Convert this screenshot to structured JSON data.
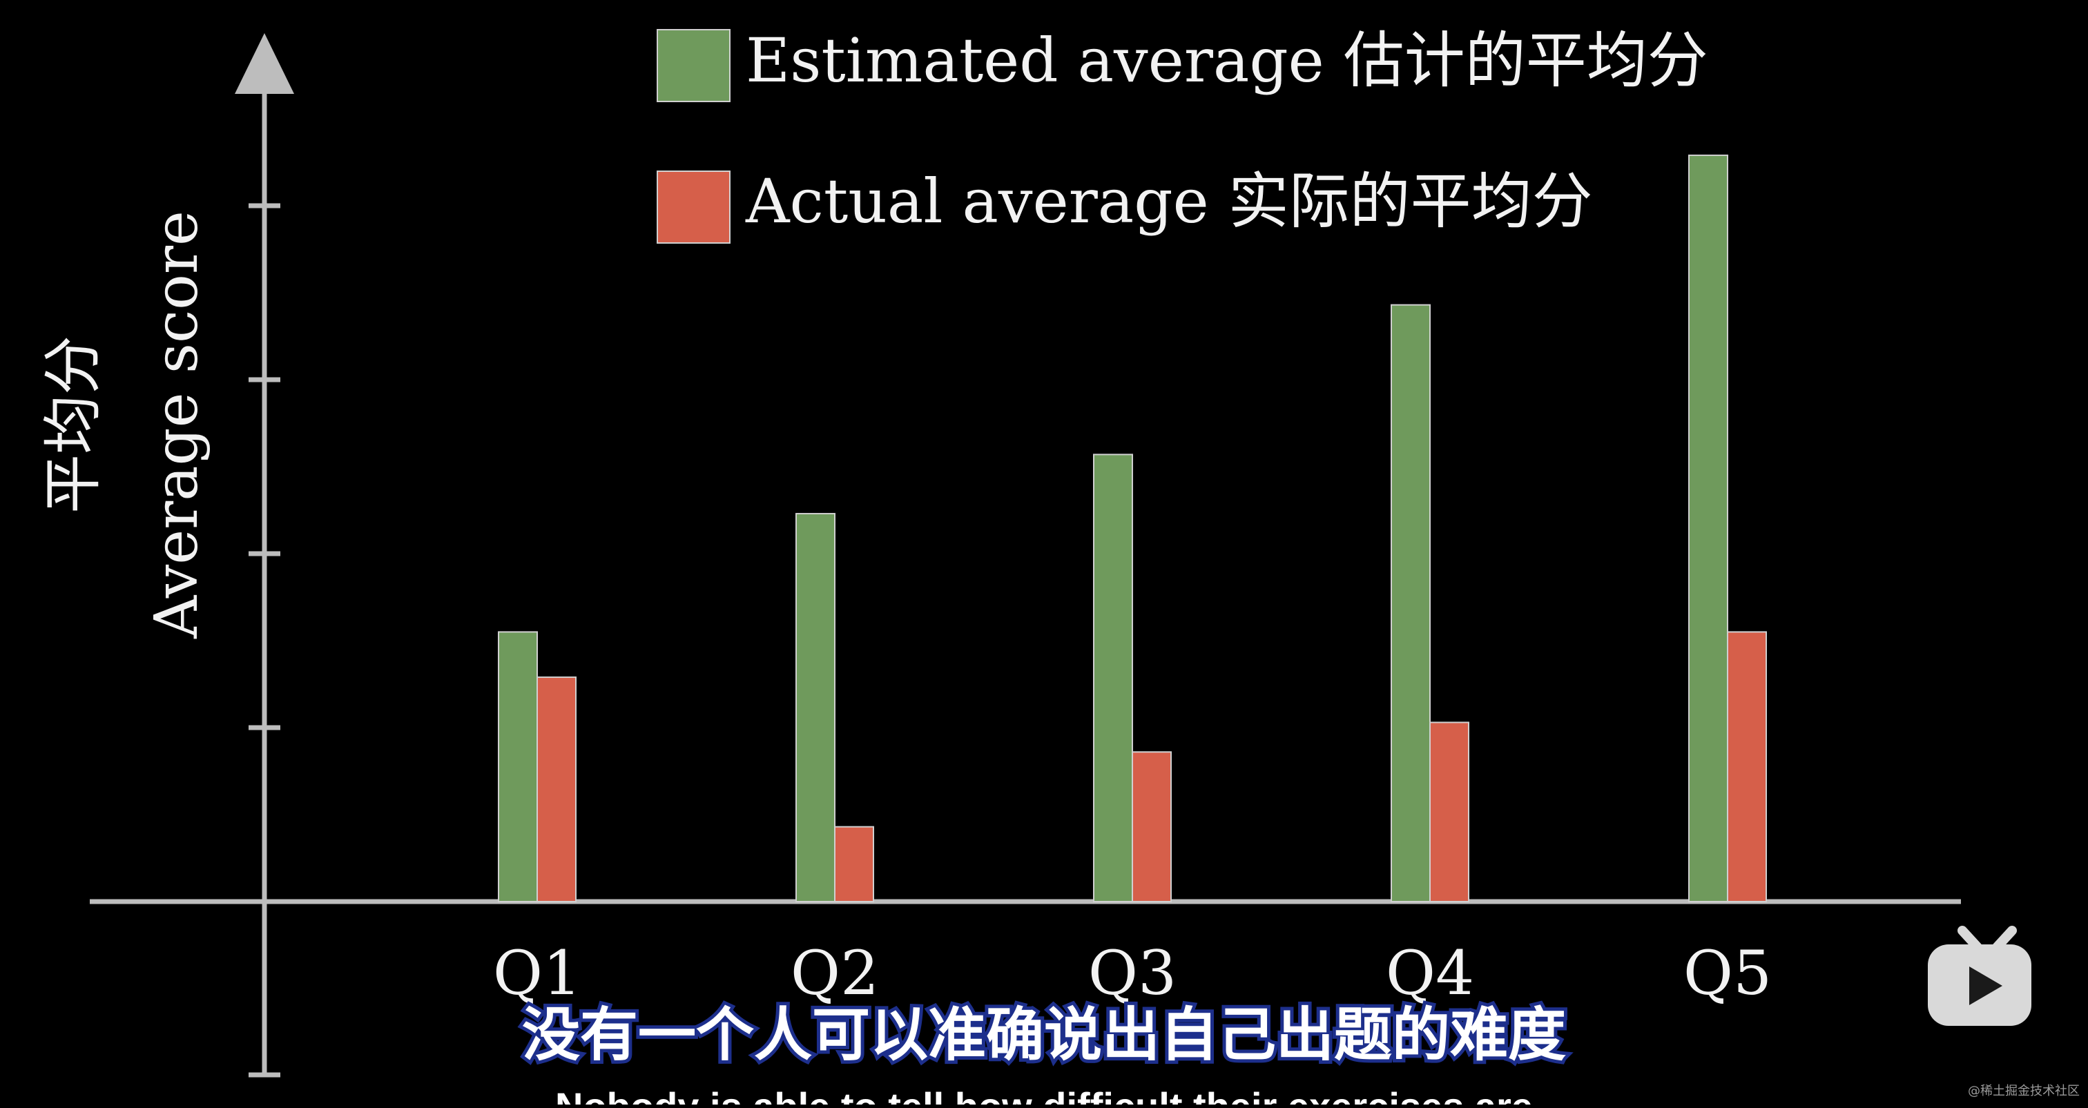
{
  "chart_data": {
    "type": "bar",
    "categories": [
      "Q1",
      "Q2",
      "Q3",
      "Q4",
      "Q5"
    ],
    "series": [
      {
        "name": "Estimated average 估计的平均分",
        "color": "#6f9a5c",
        "values": [
          1.55,
          2.23,
          2.57,
          3.43,
          4.29
        ]
      },
      {
        "name": "Actual average 实际的平均分",
        "color": "#d65f4a",
        "values": [
          1.29,
          0.43,
          0.86,
          1.03,
          1.55
        ]
      }
    ],
    "ylabel_line1": "平均分",
    "ylabel_line2": "Average score",
    "ylim": [
      0,
      5
    ],
    "yticks": [
      1,
      2,
      3,
      4
    ],
    "axis_color": "#bdbdbd",
    "legend_position": "top"
  },
  "subtitles": {
    "chinese": "没有一个人可以准确说出自己出题的难度",
    "english": "Nobody is able to tell how difficult their exercises are"
  },
  "player": {
    "play_icon": "play-icon",
    "watermark": "@稀土掘金技术社区"
  }
}
